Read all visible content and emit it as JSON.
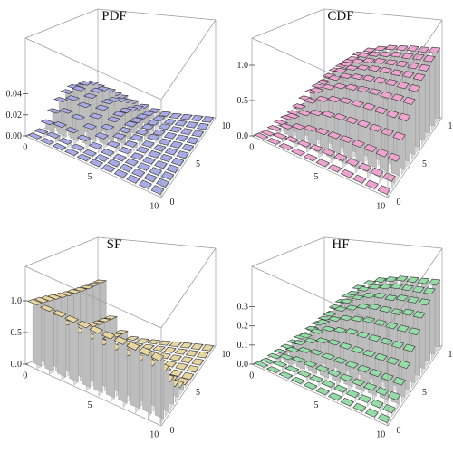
{
  "colors": {
    "PDF": "#a9abe6",
    "CDF": "#eda5d0",
    "SF": "#e8d6a0",
    "HF": "#96dca8"
  },
  "chart_data": [
    {
      "type": "bar3d",
      "title": "PDF",
      "color": "#a9abe6",
      "x_ticks": [
        "0",
        "5",
        "10"
      ],
      "y_ticks": [
        "0",
        "5",
        "10"
      ],
      "z_ticks": [
        "0.00",
        "0.02",
        "0.04"
      ],
      "grid": [
        0,
        10
      ],
      "zlim": [
        0,
        0.05
      ],
      "values": [
        [
          0.001,
          0.003,
          0.009,
          0.017,
          0.025,
          0.03,
          0.032,
          0.03,
          0.025,
          0.019,
          0.013
        ],
        [
          0.001,
          0.004,
          0.011,
          0.021,
          0.03,
          0.036,
          0.038,
          0.035,
          0.029,
          0.022,
          0.015
        ],
        [
          0.001,
          0.003,
          0.01,
          0.019,
          0.027,
          0.032,
          0.034,
          0.032,
          0.027,
          0.02,
          0.014
        ],
        [
          0.0,
          0.002,
          0.007,
          0.014,
          0.02,
          0.024,
          0.026,
          0.024,
          0.02,
          0.015,
          0.01
        ],
        [
          0.0,
          0.001,
          0.004,
          0.009,
          0.013,
          0.016,
          0.017,
          0.016,
          0.013,
          0.01,
          0.007
        ],
        [
          0.0,
          0.001,
          0.002,
          0.005,
          0.008,
          0.009,
          0.01,
          0.009,
          0.008,
          0.006,
          0.004
        ],
        [
          0.0,
          0.0,
          0.001,
          0.003,
          0.004,
          0.005,
          0.005,
          0.005,
          0.004,
          0.003,
          0.002
        ],
        [
          0.0,
          0.0,
          0.001,
          0.001,
          0.002,
          0.002,
          0.003,
          0.002,
          0.002,
          0.001,
          0.001
        ],
        [
          0.0,
          0.0,
          0.0,
          0.001,
          0.001,
          0.001,
          0.001,
          0.001,
          0.001,
          0.001,
          0.0
        ],
        [
          0.0,
          0.0,
          0.0,
          0.0,
          0.0,
          0.0,
          0.0,
          0.0,
          0.0,
          0.0,
          0.0
        ],
        [
          0.0,
          0.0,
          0.0,
          0.0,
          0.0,
          0.0,
          0.0,
          0.0,
          0.0,
          0.0,
          0.0
        ]
      ]
    },
    {
      "type": "bar3d",
      "title": "CDF",
      "color": "#eda5d0",
      "x_ticks": [
        "0",
        "5",
        "10"
      ],
      "y_ticks": [
        "0",
        "5",
        "10"
      ],
      "z_ticks": [
        "0.0",
        "0.5",
        "1.0"
      ],
      "grid": [
        0,
        10
      ],
      "zlim": [
        0,
        1.0
      ],
      "values": [
        [
          0.0,
          0.02,
          0.05,
          0.09,
          0.12,
          0.15,
          0.17,
          0.18,
          0.19,
          0.2,
          0.2
        ],
        [
          0.01,
          0.05,
          0.14,
          0.24,
          0.33,
          0.4,
          0.45,
          0.48,
          0.5,
          0.51,
          0.52
        ],
        [
          0.01,
          0.07,
          0.2,
          0.34,
          0.46,
          0.56,
          0.62,
          0.66,
          0.69,
          0.7,
          0.71
        ],
        [
          0.01,
          0.08,
          0.24,
          0.4,
          0.54,
          0.65,
          0.72,
          0.77,
          0.8,
          0.82,
          0.83
        ],
        [
          0.01,
          0.09,
          0.26,
          0.44,
          0.59,
          0.71,
          0.79,
          0.84,
          0.87,
          0.89,
          0.9
        ],
        [
          0.01,
          0.1,
          0.27,
          0.46,
          0.62,
          0.74,
          0.82,
          0.88,
          0.91,
          0.93,
          0.94
        ],
        [
          0.01,
          0.1,
          0.28,
          0.47,
          0.63,
          0.76,
          0.84,
          0.9,
          0.93,
          0.95,
          0.97
        ],
        [
          0.01,
          0.1,
          0.28,
          0.48,
          0.64,
          0.77,
          0.85,
          0.91,
          0.94,
          0.97,
          0.98
        ],
        [
          0.01,
          0.1,
          0.28,
          0.48,
          0.64,
          0.77,
          0.86,
          0.91,
          0.95,
          0.97,
          0.99
        ],
        [
          0.01,
          0.1,
          0.28,
          0.48,
          0.64,
          0.78,
          0.86,
          0.92,
          0.95,
          0.98,
          0.99
        ],
        [
          0.01,
          0.1,
          0.28,
          0.48,
          0.65,
          0.78,
          0.86,
          0.92,
          0.95,
          0.98,
          1.0
        ]
      ]
    },
    {
      "type": "bar3d",
      "title": "SF",
      "color": "#e8d6a0",
      "x_ticks": [
        "0",
        "5",
        "10"
      ],
      "y_ticks": [
        "0",
        "5",
        "10"
      ],
      "z_ticks": [
        "0.0",
        "0.5",
        "1.0"
      ],
      "grid": [
        0,
        10
      ],
      "zlim": [
        0,
        1.0
      ],
      "values": [
        [
          1.0,
          0.99,
          0.97,
          0.95,
          0.93,
          0.91,
          0.9,
          0.89,
          0.88,
          0.88,
          0.88
        ],
        [
          0.99,
          0.88,
          0.74,
          0.62,
          0.52,
          0.45,
          0.4,
          0.37,
          0.35,
          0.34,
          0.33
        ],
        [
          0.99,
          0.8,
          0.6,
          0.44,
          0.32,
          0.24,
          0.19,
          0.16,
          0.14,
          0.13,
          0.12
        ],
        [
          0.99,
          0.76,
          0.52,
          0.34,
          0.22,
          0.14,
          0.09,
          0.06,
          0.05,
          0.04,
          0.04
        ],
        [
          0.99,
          0.74,
          0.48,
          0.29,
          0.17,
          0.09,
          0.05,
          0.03,
          0.02,
          0.01,
          0.01
        ],
        [
          0.99,
          0.73,
          0.46,
          0.27,
          0.14,
          0.07,
          0.03,
          0.01,
          0.01,
          0.0,
          0.0
        ],
        [
          0.99,
          0.73,
          0.45,
          0.26,
          0.13,
          0.06,
          0.02,
          0.01,
          0.0,
          0.0,
          0.0
        ],
        [
          0.99,
          0.72,
          0.45,
          0.25,
          0.12,
          0.05,
          0.02,
          0.01,
          0.0,
          0.0,
          0.0
        ],
        [
          0.99,
          0.72,
          0.45,
          0.25,
          0.12,
          0.05,
          0.02,
          0.0,
          0.0,
          0.0,
          0.0
        ],
        [
          0.99,
          0.72,
          0.44,
          0.25,
          0.12,
          0.05,
          0.02,
          0.0,
          0.0,
          0.0,
          0.0
        ],
        [
          0.99,
          0.72,
          0.44,
          0.25,
          0.12,
          0.05,
          0.02,
          0.0,
          0.0,
          0.0,
          0.0
        ]
      ]
    },
    {
      "type": "bar3d",
      "title": "HF",
      "color": "#96dca8",
      "x_ticks": [
        "0",
        "5",
        "10"
      ],
      "y_ticks": [
        "0",
        "5",
        "10"
      ],
      "z_ticks": [
        "0.0",
        "0.1",
        "0.2",
        "0.3"
      ],
      "grid": [
        0,
        10
      ],
      "zlim": [
        0,
        0.35
      ],
      "values": [
        [
          0.0,
          0.01,
          0.02,
          0.03,
          0.04,
          0.05,
          0.06,
          0.06,
          0.07,
          0.07,
          0.08
        ],
        [
          0.0,
          0.02,
          0.04,
          0.06,
          0.08,
          0.1,
          0.12,
          0.13,
          0.14,
          0.15,
          0.16
        ],
        [
          0.0,
          0.02,
          0.05,
          0.08,
          0.11,
          0.14,
          0.17,
          0.19,
          0.21,
          0.22,
          0.23
        ],
        [
          0.0,
          0.02,
          0.05,
          0.09,
          0.13,
          0.17,
          0.2,
          0.23,
          0.25,
          0.27,
          0.28
        ],
        [
          0.0,
          0.02,
          0.05,
          0.09,
          0.14,
          0.18,
          0.22,
          0.25,
          0.28,
          0.3,
          0.31
        ],
        [
          0.0,
          0.02,
          0.05,
          0.09,
          0.14,
          0.19,
          0.23,
          0.27,
          0.3,
          0.32,
          0.33
        ],
        [
          0.0,
          0.02,
          0.05,
          0.09,
          0.14,
          0.19,
          0.24,
          0.28,
          0.31,
          0.33,
          0.34
        ],
        [
          0.0,
          0.02,
          0.05,
          0.09,
          0.14,
          0.19,
          0.24,
          0.28,
          0.31,
          0.34,
          0.35
        ],
        [
          0.0,
          0.02,
          0.05,
          0.09,
          0.14,
          0.19,
          0.24,
          0.28,
          0.32,
          0.34,
          0.35
        ],
        [
          0.0,
          0.02,
          0.05,
          0.09,
          0.14,
          0.19,
          0.24,
          0.29,
          0.32,
          0.34,
          0.35
        ],
        [
          0.0,
          0.02,
          0.05,
          0.09,
          0.14,
          0.19,
          0.24,
          0.29,
          0.32,
          0.34,
          0.35
        ]
      ]
    }
  ]
}
